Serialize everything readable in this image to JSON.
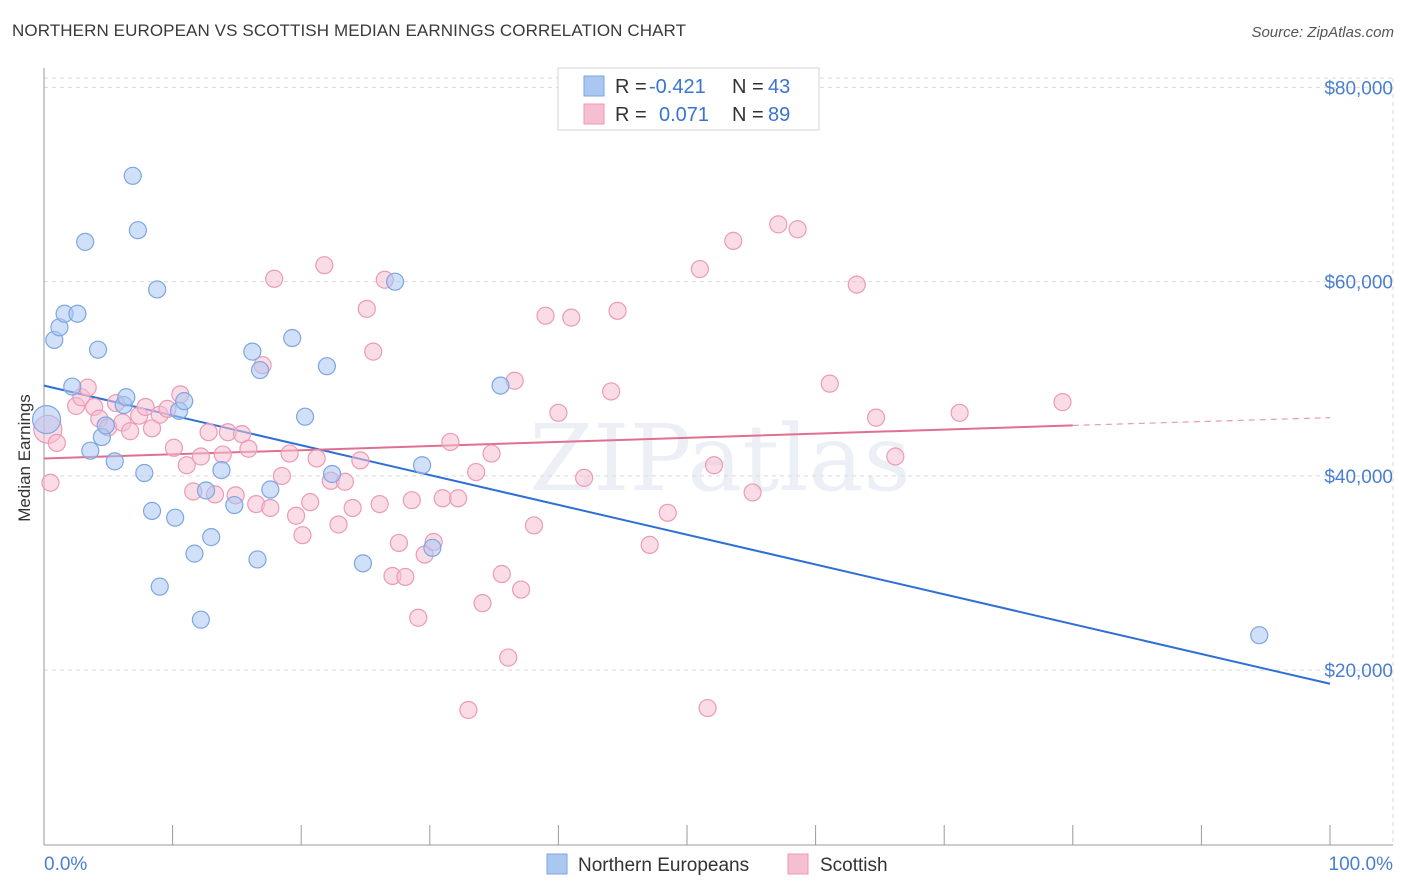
{
  "header": {
    "title": "NORTHERN EUROPEAN VS SCOTTISH MEDIAN EARNINGS CORRELATION CHART",
    "source": "Source: ZipAtlas.com"
  },
  "watermark": "ZIPatlas",
  "colors": {
    "blue_fill": "#aac7f2",
    "blue_stroke": "#7ea6e0",
    "blue_line": "#2f6fd4",
    "pink_fill": "#f6bfd1",
    "pink_stroke": "#ec9ab6",
    "pink_line": "#e0708f",
    "tick_text": "#4a7fd0",
    "grid": "#d9d9d9"
  },
  "legend": {
    "rows": [
      {
        "r_label": "R =",
        "r_value": "-0.421",
        "n_label": "N =",
        "n_value": "43"
      },
      {
        "r_label": "R =",
        "r_value": "0.071",
        "n_label": "N =",
        "n_value": "89"
      }
    ]
  },
  "bottom_legend": [
    "Northern Europeans",
    "Scottish"
  ],
  "chart_data": {
    "type": "scatter",
    "title": "NORTHERN EUROPEAN VS SCOTTISH MEDIAN EARNINGS CORRELATION CHART",
    "xlabel": "",
    "ylabel": "Median Earnings",
    "xlim": [
      0,
      100
    ],
    "ylim": [
      2000,
      82000
    ],
    "x_tick_labels": [
      "0.0%",
      "100.0%"
    ],
    "y_ticks": [
      20000,
      40000,
      60000,
      80000
    ],
    "y_tick_labels": [
      "$20,000",
      "$40,000",
      "$60,000",
      "$80,000"
    ],
    "grid": true,
    "legend_position": "top-center",
    "series": [
      {
        "name": "Northern Europeans",
        "r": -0.421,
        "n": 43,
        "trend": {
          "x": [
            0,
            100
          ],
          "y": [
            49300,
            18600
          ]
        },
        "points": [
          [
            0.2,
            45800
          ],
          [
            0.8,
            54000
          ],
          [
            1.2,
            55300
          ],
          [
            1.6,
            56700
          ],
          [
            2.2,
            49200
          ],
          [
            2.6,
            56700
          ],
          [
            3.2,
            64100
          ],
          [
            3.6,
            42600
          ],
          [
            4.2,
            53000
          ],
          [
            4.5,
            44000
          ],
          [
            4.8,
            45200
          ],
          [
            5.5,
            41500
          ],
          [
            6.2,
            47300
          ],
          [
            6.4,
            48100
          ],
          [
            6.9,
            70900
          ],
          [
            7.3,
            65300
          ],
          [
            7.8,
            40300
          ],
          [
            8.4,
            36400
          ],
          [
            8.8,
            59200
          ],
          [
            9.0,
            28600
          ],
          [
            10.2,
            35700
          ],
          [
            10.5,
            46700
          ],
          [
            10.9,
            47700
          ],
          [
            11.7,
            32000
          ],
          [
            12.2,
            25200
          ],
          [
            12.6,
            38500
          ],
          [
            13.0,
            33700
          ],
          [
            13.8,
            40600
          ],
          [
            14.8,
            37000
          ],
          [
            16.2,
            52800
          ],
          [
            16.6,
            31400
          ],
          [
            16.8,
            50900
          ],
          [
            17.6,
            38600
          ],
          [
            19.3,
            54200
          ],
          [
            20.3,
            46100
          ],
          [
            22.0,
            51300
          ],
          [
            22.4,
            40200
          ],
          [
            24.8,
            31000
          ],
          [
            27.3,
            60000
          ],
          [
            29.4,
            41100
          ],
          [
            30.2,
            32600
          ],
          [
            35.5,
            49300
          ],
          [
            94.5,
            23600
          ]
        ]
      },
      {
        "name": "Scottish",
        "r": 0.071,
        "n": 89,
        "trend": {
          "x": [
            0,
            80
          ],
          "y": [
            41800,
            45200
          ]
        },
        "trend_dashed": {
          "x": [
            80,
            100
          ],
          "y": [
            45200,
            46000
          ]
        },
        "points": [
          [
            0.3,
            44800
          ],
          [
            0.5,
            39300
          ],
          [
            1.0,
            43400
          ],
          [
            2.5,
            47200
          ],
          [
            2.9,
            48100
          ],
          [
            3.4,
            49100
          ],
          [
            3.9,
            47100
          ],
          [
            4.3,
            45900
          ],
          [
            5.0,
            45000
          ],
          [
            5.6,
            47500
          ],
          [
            6.1,
            45500
          ],
          [
            6.7,
            44600
          ],
          [
            7.4,
            46200
          ],
          [
            7.9,
            47100
          ],
          [
            8.4,
            44900
          ],
          [
            9.0,
            46300
          ],
          [
            9.6,
            46900
          ],
          [
            10.1,
            42900
          ],
          [
            10.6,
            48400
          ],
          [
            11.1,
            41100
          ],
          [
            11.6,
            38400
          ],
          [
            12.2,
            42000
          ],
          [
            12.8,
            44500
          ],
          [
            13.3,
            38100
          ],
          [
            13.9,
            42200
          ],
          [
            14.3,
            44500
          ],
          [
            14.9,
            38000
          ],
          [
            15.4,
            44300
          ],
          [
            15.9,
            42800
          ],
          [
            16.5,
            37100
          ],
          [
            17.0,
            51400
          ],
          [
            17.6,
            36700
          ],
          [
            17.9,
            60300
          ],
          [
            18.5,
            40000
          ],
          [
            19.1,
            42300
          ],
          [
            19.6,
            35900
          ],
          [
            20.1,
            33900
          ],
          [
            20.7,
            37300
          ],
          [
            21.2,
            41800
          ],
          [
            21.8,
            61700
          ],
          [
            22.3,
            39500
          ],
          [
            22.9,
            35000
          ],
          [
            23.4,
            39400
          ],
          [
            24.0,
            36700
          ],
          [
            24.6,
            41600
          ],
          [
            25.1,
            57200
          ],
          [
            25.6,
            52800
          ],
          [
            26.1,
            37100
          ],
          [
            26.5,
            60200
          ],
          [
            27.1,
            29700
          ],
          [
            27.6,
            33100
          ],
          [
            28.1,
            29600
          ],
          [
            28.6,
            37500
          ],
          [
            29.1,
            25400
          ],
          [
            29.6,
            31900
          ],
          [
            30.3,
            33200
          ],
          [
            31.0,
            37700
          ],
          [
            31.6,
            43500
          ],
          [
            32.2,
            37700
          ],
          [
            33.0,
            15900
          ],
          [
            33.6,
            40400
          ],
          [
            34.1,
            26900
          ],
          [
            34.8,
            42300
          ],
          [
            35.6,
            29900
          ],
          [
            36.1,
            21300
          ],
          [
            36.6,
            49800
          ],
          [
            37.1,
            28300
          ],
          [
            38.1,
            34900
          ],
          [
            39.0,
            56500
          ],
          [
            40.0,
            46500
          ],
          [
            41.0,
            56300
          ],
          [
            42.0,
            39800
          ],
          [
            44.1,
            48700
          ],
          [
            44.6,
            57000
          ],
          [
            47.1,
            32900
          ],
          [
            48.5,
            36200
          ],
          [
            51.0,
            61300
          ],
          [
            51.6,
            16100
          ],
          [
            52.1,
            41100
          ],
          [
            53.6,
            64200
          ],
          [
            55.1,
            38300
          ],
          [
            57.1,
            65900
          ],
          [
            58.6,
            65400
          ],
          [
            61.1,
            49500
          ],
          [
            63.2,
            59700
          ],
          [
            64.7,
            46000
          ],
          [
            66.2,
            42000
          ],
          [
            71.2,
            46500
          ],
          [
            79.2,
            47600
          ]
        ]
      }
    ]
  }
}
